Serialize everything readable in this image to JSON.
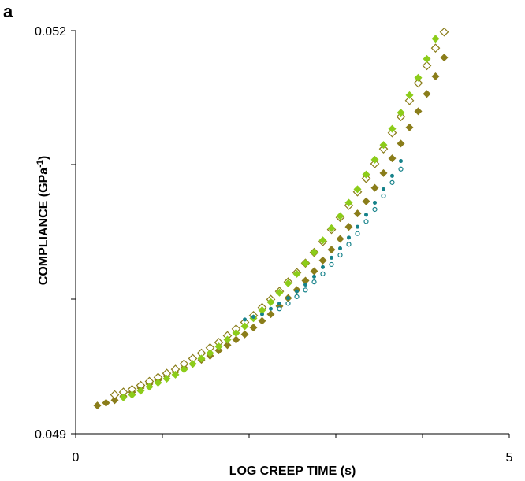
{
  "chart_data": {
    "type": "scatter",
    "panel_label": "a",
    "xlabel": "LOG CREEP TIME (s)",
    "ylabel": "COMPLIANCE (GPa",
    "ylabel_sup": "-1",
    "ylabel_end": ")",
    "xlim": [
      0,
      5
    ],
    "ylim": [
      0.049,
      0.052
    ],
    "x_tick_labels": [
      "0",
      "5"
    ],
    "y_tick_labels": [
      "0.049",
      "0.052"
    ],
    "grid": false,
    "legend": "none",
    "colors": {
      "olive": "#8a7d1a",
      "lime": "#8ccc1a",
      "teal": "#16828a",
      "axis": "#000000"
    },
    "series": [
      {
        "marker": "diamond-filled",
        "color": "#8a7d1a",
        "x": [
          0.25,
          0.35,
          0.45,
          0.55,
          0.65,
          0.75,
          0.85,
          0.95,
          1.05,
          1.15,
          1.25,
          1.35,
          1.45,
          1.55,
          1.65,
          1.75,
          1.85,
          1.95,
          2.05,
          2.15,
          2.25,
          2.35,
          2.45,
          2.55,
          2.65,
          2.75,
          2.85,
          2.95,
          3.05,
          3.15,
          3.25,
          3.35,
          3.45,
          3.55,
          3.65,
          3.75,
          3.85,
          3.95,
          4.05,
          4.15,
          4.25
        ],
        "y": [
          0.04921,
          0.04923,
          0.04925,
          0.04928,
          0.04931,
          0.04934,
          0.04937,
          0.0494,
          0.04943,
          0.04946,
          0.04949,
          0.04952,
          0.04955,
          0.04958,
          0.04962,
          0.04966,
          0.0497,
          0.04974,
          0.04979,
          0.04984,
          0.04989,
          0.04995,
          0.05001,
          0.05007,
          0.05014,
          0.05021,
          0.05029,
          0.05037,
          0.05045,
          0.05054,
          0.05064,
          0.05073,
          0.05083,
          0.05094,
          0.05105,
          0.05116,
          0.05128,
          0.0514,
          0.05153,
          0.05166,
          0.0518
        ]
      },
      {
        "marker": "diamond-open",
        "color": "#8a7d1a",
        "x": [
          0.45,
          0.55,
          0.65,
          0.75,
          0.85,
          0.95,
          1.05,
          1.15,
          1.25,
          1.35,
          1.45,
          1.55,
          1.65,
          1.75,
          1.85,
          1.95,
          2.05,
          2.15,
          2.25,
          2.35,
          2.45,
          2.55,
          2.65,
          2.75,
          2.85,
          2.95,
          3.05,
          3.15,
          3.25,
          3.35,
          3.45,
          3.55,
          3.65,
          3.75,
          3.85,
          3.95,
          4.05,
          4.15,
          4.25
        ],
        "y": [
          0.04929,
          0.04931,
          0.04933,
          0.04936,
          0.04939,
          0.04942,
          0.04945,
          0.04948,
          0.04952,
          0.04956,
          0.0496,
          0.04964,
          0.04968,
          0.04973,
          0.04978,
          0.04983,
          0.04988,
          0.04994,
          0.05,
          0.05006,
          0.05013,
          0.0502,
          0.05027,
          0.05035,
          0.05043,
          0.05052,
          0.05061,
          0.0507,
          0.0508,
          0.0509,
          0.05101,
          0.05112,
          0.05124,
          0.05136,
          0.05148,
          0.05161,
          0.05174,
          0.05187,
          0.05199
        ]
      },
      {
        "marker": "diamond-filled",
        "color": "#8ccc1a",
        "x": [
          0.55,
          0.65,
          0.75,
          0.85,
          0.95,
          1.05,
          1.15,
          1.25,
          1.35,
          1.45,
          1.55,
          1.65,
          1.75,
          1.85,
          1.95,
          2.05,
          2.15,
          2.25,
          2.35,
          2.45,
          2.55,
          2.65,
          2.75,
          2.85,
          2.95,
          3.05,
          3.15,
          3.25,
          3.35,
          3.45,
          3.55,
          3.65,
          3.75,
          3.85,
          3.95,
          4.05,
          4.15
        ],
        "y": [
          0.04927,
          0.04929,
          0.04932,
          0.04935,
          0.04938,
          0.04941,
          0.04944,
          0.04948,
          0.04952,
          0.04956,
          0.0496,
          0.04965,
          0.0497,
          0.04975,
          0.0498,
          0.04986,
          0.04992,
          0.04998,
          0.05005,
          0.05012,
          0.05019,
          0.05027,
          0.05035,
          0.05044,
          0.05053,
          0.05062,
          0.05072,
          0.05082,
          0.05093,
          0.05104,
          0.05115,
          0.05127,
          0.05139,
          0.05152,
          0.05165,
          0.05179,
          0.05194
        ]
      },
      {
        "marker": "circle-filled",
        "color": "#16828a",
        "x": [
          1.95,
          2.05,
          2.15,
          2.25,
          2.35,
          2.45,
          2.55,
          2.65,
          2.75,
          2.85,
          2.95,
          3.05,
          3.15,
          3.25,
          3.35,
          3.45,
          3.55,
          3.65,
          3.75
        ],
        "y": [
          0.04985,
          0.04987,
          0.04989,
          0.04993,
          0.04997,
          0.05001,
          0.05006,
          0.05011,
          0.05017,
          0.05024,
          0.05031,
          0.05038,
          0.05046,
          0.05054,
          0.05063,
          0.05072,
          0.05082,
          0.05092,
          0.05103
        ]
      },
      {
        "marker": "circle-open",
        "color": "#16828a",
        "x": [
          2.35,
          2.45,
          2.55,
          2.65,
          2.75,
          2.85,
          2.95,
          3.05,
          3.15,
          3.25,
          3.35,
          3.45,
          3.55,
          3.65,
          3.75
        ],
        "y": [
          0.04993,
          0.04997,
          0.05002,
          0.05007,
          0.05013,
          0.05019,
          0.05026,
          0.05033,
          0.05041,
          0.05049,
          0.05058,
          0.05067,
          0.05077,
          0.05087,
          0.05097
        ]
      }
    ]
  }
}
